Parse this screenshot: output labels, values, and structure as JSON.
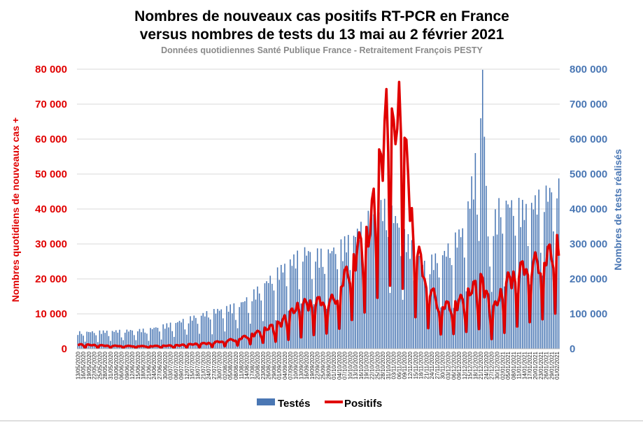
{
  "chart_data": {
    "type": "bar+line",
    "title": "Nombres de nouveaux cas positifs RT-PCR en France",
    "title2": "versus nombres de tests du 13 mai au 2 février 2021",
    "subtitle": "Données quotidiennes Santé Publique France - Retraitement François PESTY",
    "ylabel_left": "Nombres quotidiens de nouveaux cas +",
    "ylabel_right": "Nombres de tests réalisés",
    "ylim_left": [
      0,
      80000
    ],
    "ylim_right": [
      0,
      800000
    ],
    "yticks_left": [
      "0",
      "10 000",
      "20 000",
      "30 000",
      "40 000",
      "50 000",
      "60 000",
      "70 000",
      "80 000"
    ],
    "yticks_right": [
      "0",
      "100 000",
      "200 000",
      "300 000",
      "400 000",
      "500 000",
      "600 000",
      "700 000",
      "800 000"
    ],
    "grid": true,
    "legend_position": "bottom",
    "colors": {
      "tests": "#4a77b4",
      "positifs": "#e00000"
    },
    "x_tick_labels": [
      "13/05/2020",
      "16/05/2020",
      "19/05/2020",
      "22/05/2020",
      "25/05/2020",
      "28/05/2020",
      "31/05/2020",
      "03/06/2020",
      "06/06/2020",
      "09/06/2020",
      "12/06/2020",
      "15/06/2020",
      "18/06/2020",
      "21/06/2020",
      "24/06/2020",
      "27/06/2020",
      "30/06/2020",
      "03/07/2020",
      "06/07/2020",
      "09/07/2020",
      "12/07/2020",
      "15/07/2020",
      "18/07/2020",
      "21/07/2020",
      "24/07/2020",
      "27/07/2020",
      "30/07/2020",
      "02/08/2020",
      "05/08/2020",
      "08/08/2020",
      "11/08/2020",
      "14/08/2020",
      "17/08/2020",
      "20/08/2020",
      "23/08/2020",
      "26/08/2020",
      "29/08/2020",
      "01/09/2020",
      "04/09/2020",
      "07/09/2020",
      "10/09/2020",
      "13/09/2020",
      "16/09/2020",
      "19/09/2020",
      "22/09/2020",
      "25/09/2020",
      "28/09/2020",
      "01/10/2020",
      "04/10/2020",
      "07/10/2020",
      "10/10/2020",
      "13/10/2020",
      "16/10/2020",
      "19/10/2020",
      "22/10/2020",
      "25/10/2020",
      "28/10/2020",
      "31/10/2020",
      "03/11/2020",
      "06/11/2020",
      "09/11/2020",
      "12/11/2020",
      "15/11/2020",
      "18/11/2020",
      "21/11/2020",
      "24/11/2020",
      "27/11/2020",
      "30/11/2020",
      "03/12/2020",
      "06/12/2020",
      "09/12/2020",
      "12/12/2020",
      "15/12/2020",
      "18/12/2020",
      "21/12/2020",
      "24/12/2020",
      "27/12/2020",
      "30/12/2020",
      "02/01/2021",
      "05/01/2021",
      "08/01/2021",
      "11/01/2021",
      "14/01/2021",
      "17/01/2021",
      "20/01/2021",
      "23/01/2021",
      "26/01/2021",
      "29/01/2021",
      "01/02/2021"
    ],
    "series": [
      {
        "name": "Testés",
        "kind": "bar",
        "axis": "right",
        "start_date": "2020-05-13",
        "end_date": "2021-02-02",
        "weekly_profile_points": [
          [
            "2020-05-13",
            45000
          ],
          [
            "2020-06-01",
            48000
          ],
          [
            "2020-06-20",
            52000
          ],
          [
            "2020-07-05",
            70000
          ],
          [
            "2020-07-25",
            100000
          ],
          [
            "2020-08-10",
            120000
          ],
          [
            "2020-08-20",
            160000
          ],
          [
            "2020-09-05",
            230000
          ],
          [
            "2020-09-15",
            265000
          ],
          [
            "2020-09-25",
            255000
          ],
          [
            "2020-10-05",
            280000
          ],
          [
            "2020-10-15",
            320000
          ],
          [
            "2020-10-25",
            390000
          ],
          [
            "2020-11-01",
            380000
          ],
          [
            "2020-11-10",
            300000
          ],
          [
            "2020-11-20",
            230000
          ],
          [
            "2020-12-01",
            260000
          ],
          [
            "2020-12-12",
            330000
          ],
          [
            "2020-12-18",
            500000
          ],
          [
            "2020-12-22",
            735000
          ],
          [
            "2020-12-25",
            300000
          ],
          [
            "2021-01-01",
            400000
          ],
          [
            "2021-01-15",
            380000
          ],
          [
            "2021-01-25",
            420000
          ],
          [
            "2021-02-02",
            440000
          ]
        ],
        "weekend_factor": 0.45
      },
      {
        "name": "Positifs",
        "kind": "line",
        "axis": "left",
        "weekly_profile_points": [
          [
            "2020-05-13",
            1200
          ],
          [
            "2020-06-01",
            800
          ],
          [
            "2020-06-20",
            700
          ],
          [
            "2020-07-05",
            900
          ],
          [
            "2020-07-25",
            1600
          ],
          [
            "2020-08-10",
            2800
          ],
          [
            "2020-08-20",
            4500
          ],
          [
            "2020-09-01",
            7000
          ],
          [
            "2020-09-12",
            12000
          ],
          [
            "2020-09-20",
            13000
          ],
          [
            "2020-10-01",
            13500
          ],
          [
            "2020-10-07",
            20000
          ],
          [
            "2020-10-13",
            26000
          ],
          [
            "2020-10-17",
            32000
          ],
          [
            "2020-10-20",
            30000
          ],
          [
            "2020-10-24",
            45000
          ],
          [
            "2020-10-27",
            52000
          ],
          [
            "2020-10-31",
            69000
          ],
          [
            "2020-11-03",
            58000
          ],
          [
            "2020-11-07",
            70000
          ],
          [
            "2020-11-10",
            52000
          ],
          [
            "2020-11-14",
            32000
          ],
          [
            "2020-11-20",
            20000
          ],
          [
            "2020-11-28",
            12000
          ],
          [
            "2020-12-05",
            12000
          ],
          [
            "2020-12-12",
            14000
          ],
          [
            "2020-12-18",
            17500
          ],
          [
            "2020-12-22",
            19000
          ],
          [
            "2020-12-27",
            10000
          ],
          [
            "2021-01-05",
            19000
          ],
          [
            "2021-01-12",
            22000
          ],
          [
            "2021-01-20",
            24000
          ],
          [
            "2021-01-26",
            25000
          ],
          [
            "2021-02-02",
            31000
          ]
        ],
        "weekend_factor": 0.3
      }
    ]
  }
}
